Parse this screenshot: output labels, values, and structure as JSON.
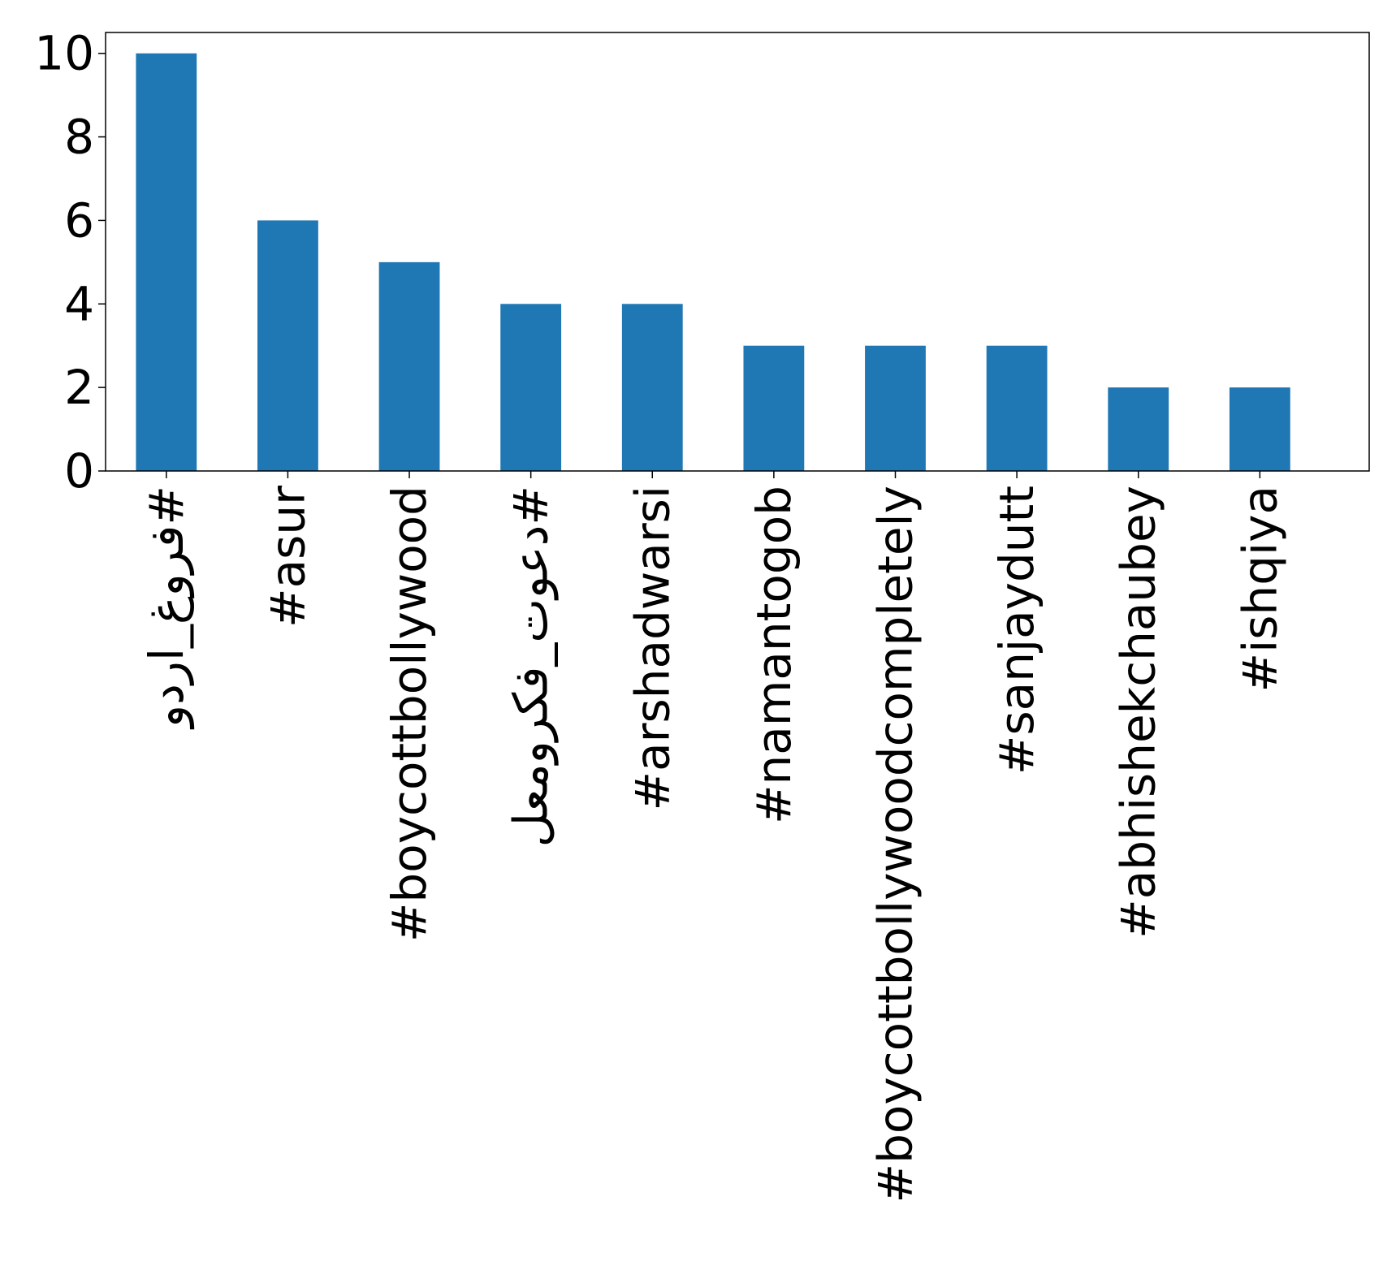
{
  "chart_data": {
    "type": "bar",
    "title": "",
    "xlabel": "",
    "ylabel": "",
    "categories": [
      "#فروغ_اردو",
      "#asur",
      "#boycottbollywood",
      "#دعوت_فکرومعل",
      "#arshadwarsi",
      "#namantogob",
      "#boycottbollywoodcompletely",
      "#sanjaydutt",
      "#abhishekchaubey",
      "#ishqiya"
    ],
    "values": [
      10,
      6,
      5,
      4,
      4,
      3,
      3,
      3,
      2,
      2
    ],
    "ylim": [
      0,
      10.5
    ],
    "yticks": [
      "0",
      "2",
      "4",
      "6",
      "8",
      "10"
    ],
    "bar_color": "#1f77b4",
    "grid": false,
    "legend": "none"
  }
}
